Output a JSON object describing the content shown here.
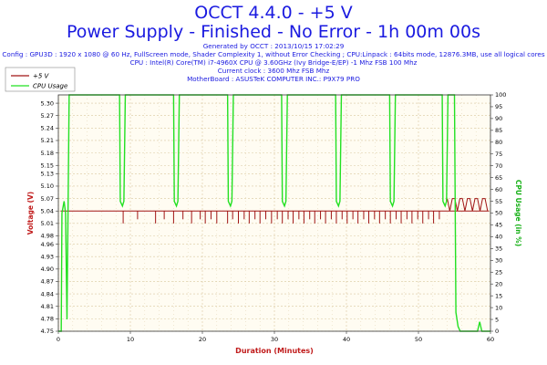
{
  "header": {
    "title": "OCCT 4.4.0 - +5 V",
    "subtitle": "Power Supply - Finished - No Error - 1h 00m 00s",
    "meta_lines": [
      "Generated by OCCT : 2013/10/15 17:02:29",
      "Config : GPU3D : 1920 x 1080 @ 60 Hz, FullScreen mode, Shader Complexity 1, without Error Checking ; CPU:Linpack : 64bits mode, 12876.3MB, use all logical cores",
      "CPU : Intel(R) Core(TM) i7-4960X CPU @ 3.60GHz (Ivy Bridge-E/EP) -1 Mhz FSB 100 Mhz",
      "Current clock : 3600 Mhz FSB  Mhz",
      "MotherBoard : ASUSTeK COMPUTER INC.: P9X79 PRO"
    ]
  },
  "colors": {
    "voltage": "#a01414",
    "cpu": "#22e022",
    "grid": "#d9c8a0",
    "plot_bg": "#fffcf2",
    "title": "#1a1ae0"
  },
  "chart_data": {
    "type": "line",
    "xlabel": "Duration (Minutes)",
    "ylabel": "Voltage (V)",
    "y2label": "CPU Usage (in %)",
    "xlim": [
      0,
      60
    ],
    "ylim": [
      4.75,
      5.32
    ],
    "y2lim": [
      0,
      100
    ],
    "x_ticks": [
      0,
      10,
      20,
      30,
      40,
      50,
      60
    ],
    "y_ticks": [
      "4.75",
      "4.78",
      "4.81",
      "4.84",
      "4.87",
      "4.90",
      "4.93",
      "4.96",
      "4.98",
      "5.01",
      "5.04",
      "5.07",
      "5.10",
      "5.13",
      "5.15",
      "5.18",
      "5.21",
      "5.24",
      "5.27",
      "5.30"
    ],
    "y2_ticks": [
      0,
      5,
      10,
      15,
      20,
      25,
      30,
      35,
      40,
      45,
      50,
      55,
      60,
      65,
      70,
      75,
      80,
      85,
      90,
      95,
      100
    ],
    "grid": true,
    "legend_position": "top-left",
    "series": [
      {
        "name": "+5 V",
        "axis": "left",
        "baseline": 5.04,
        "dips": [
          [
            9.0,
            5.01
          ],
          [
            11.0,
            5.02
          ],
          [
            13.5,
            5.01
          ],
          [
            14.7,
            5.02
          ],
          [
            16.0,
            5.01
          ],
          [
            17.3,
            5.02
          ],
          [
            18.5,
            5.01
          ],
          [
            19.7,
            5.02
          ],
          [
            20.4,
            5.01
          ],
          [
            21.2,
            5.02
          ],
          [
            22.0,
            5.01
          ],
          [
            23.5,
            5.01
          ],
          [
            24.2,
            5.02
          ],
          [
            25.0,
            5.01
          ],
          [
            25.8,
            5.02
          ],
          [
            26.5,
            5.01
          ],
          [
            27.3,
            5.02
          ],
          [
            28.0,
            5.01
          ],
          [
            28.8,
            5.02
          ],
          [
            29.6,
            5.01
          ],
          [
            30.4,
            5.02
          ],
          [
            31.1,
            5.01
          ],
          [
            31.9,
            5.02
          ],
          [
            32.6,
            5.01
          ],
          [
            33.4,
            5.02
          ],
          [
            34.1,
            5.01
          ],
          [
            34.9,
            5.02
          ],
          [
            35.6,
            5.01
          ],
          [
            36.4,
            5.02
          ],
          [
            37.1,
            5.01
          ],
          [
            37.9,
            5.02
          ],
          [
            38.6,
            5.01
          ],
          [
            39.4,
            5.02
          ],
          [
            40.1,
            5.01
          ],
          [
            40.9,
            5.02
          ],
          [
            41.6,
            5.01
          ],
          [
            42.4,
            5.02
          ],
          [
            43.1,
            5.01
          ],
          [
            43.9,
            5.02
          ],
          [
            44.6,
            5.01
          ],
          [
            45.4,
            5.02
          ],
          [
            46.1,
            5.01
          ],
          [
            46.9,
            5.02
          ],
          [
            47.6,
            5.01
          ],
          [
            48.4,
            5.02
          ],
          [
            49.1,
            5.01
          ],
          [
            49.9,
            5.02
          ],
          [
            50.6,
            5.01
          ],
          [
            51.4,
            5.02
          ],
          [
            52.1,
            5.01
          ],
          [
            52.9,
            5.02
          ]
        ],
        "tail_segment": {
          "x": [
            54.0,
            59.8
          ],
          "low": 5.04,
          "high": 5.07
        }
      },
      {
        "name": "CPU Usage",
        "axis": "right",
        "x": [
          0,
          0.4,
          0.5,
          0.8,
          1.0,
          1.2,
          1.5,
          8.5,
          8.6,
          8.9,
          9.1,
          9.3,
          16.0,
          16.1,
          16.4,
          16.6,
          16.8,
          23.5,
          23.6,
          23.9,
          24.1,
          24.3,
          31.0,
          31.1,
          31.4,
          31.6,
          31.8,
          38.5,
          38.6,
          38.9,
          39.1,
          39.3,
          46.0,
          46.1,
          46.4,
          46.6,
          46.8,
          53.3,
          53.4,
          53.7,
          53.9,
          54.1,
          55.0,
          55.2,
          55.5,
          55.8,
          56.0,
          58.0,
          58.2,
          58.5,
          58.8,
          59.2,
          60.0
        ],
        "y": [
          0,
          0,
          50,
          55,
          50,
          5,
          100,
          100,
          55,
          53,
          55,
          100,
          100,
          55,
          53,
          55,
          100,
          100,
          55,
          53,
          55,
          100,
          100,
          55,
          53,
          55,
          100,
          100,
          55,
          53,
          55,
          100,
          100,
          55,
          53,
          55,
          100,
          100,
          55,
          53,
          55,
          100,
          100,
          8,
          2,
          0,
          0,
          0,
          0,
          4,
          0,
          0,
          0
        ]
      }
    ]
  }
}
